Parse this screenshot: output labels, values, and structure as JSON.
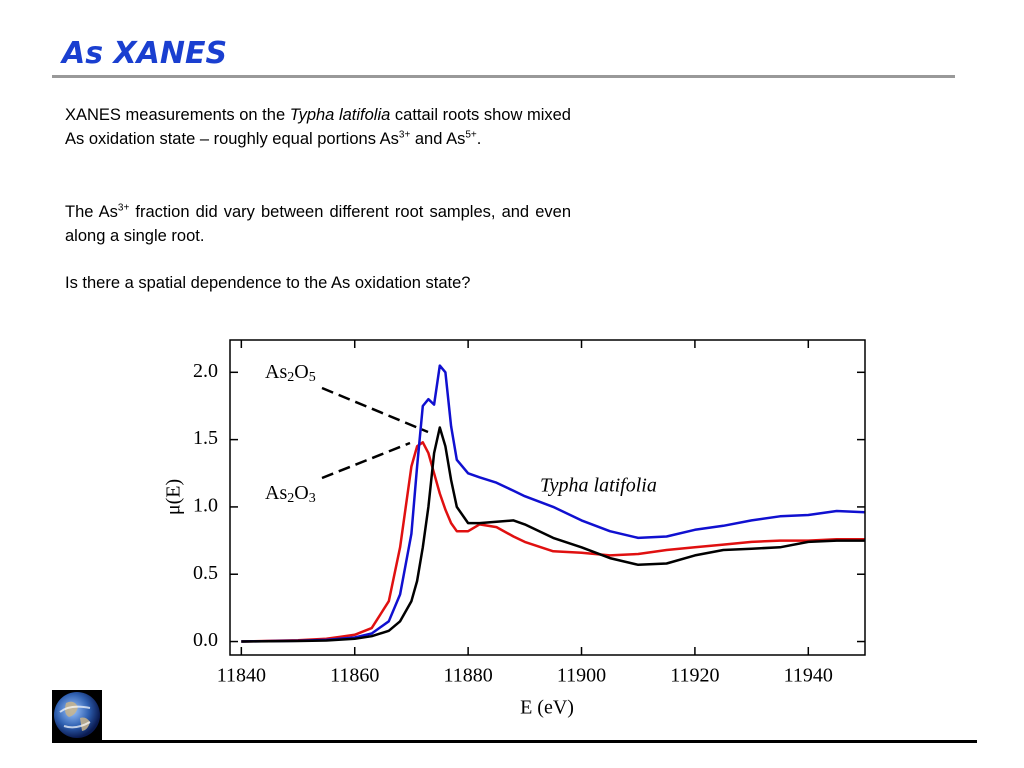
{
  "title": "As XANES",
  "paragraphs": [
    [
      "XANES measurements on the ",
      "Typha latifolia",
      " cattail roots show mixed As oxidation state – roughly equal portions As",
      "3+",
      " and As",
      "5+",
      "."
    ],
    [
      "The As",
      "3+",
      " fraction did vary between different root samples, and even along a single root."
    ],
    [
      "Is there a spatial dependence to the As oxidation state?"
    ]
  ],
  "chart_data": {
    "type": "line",
    "xlabel": "E (eV)",
    "ylabel": "μ(E)",
    "annotations": [
      [
        "As",
        "2",
        "O",
        "5"
      ],
      [
        "As",
        "2",
        "O",
        "3"
      ],
      "Typha latifolia"
    ],
    "x": [
      11840,
      11845,
      11850,
      11855,
      11860,
      11863,
      11866,
      11868,
      11870,
      11871,
      11872,
      11873,
      11874,
      11875,
      11876,
      11877,
      11878,
      11880,
      11882,
      11885,
      11888,
      11890,
      11895,
      11900,
      11905,
      11910,
      11915,
      11920,
      11925,
      11930,
      11935,
      11940,
      11945,
      11950
    ],
    "series": [
      {
        "color": "#e01010",
        "values": [
          0.0,
          0.005,
          0.01,
          0.02,
          0.05,
          0.1,
          0.3,
          0.7,
          1.3,
          1.45,
          1.48,
          1.4,
          1.25,
          1.1,
          0.98,
          0.88,
          0.82,
          0.82,
          0.87,
          0.85,
          0.78,
          0.74,
          0.67,
          0.66,
          0.64,
          0.65,
          0.68,
          0.7,
          0.72,
          0.74,
          0.75,
          0.75,
          0.76,
          0.76
        ]
      },
      {
        "color": "#1010d0",
        "values": [
          0.0,
          0.003,
          0.006,
          0.012,
          0.03,
          0.06,
          0.15,
          0.35,
          0.8,
          1.3,
          1.75,
          1.8,
          1.76,
          2.05,
          2.0,
          1.6,
          1.35,
          1.25,
          1.22,
          1.18,
          1.12,
          1.08,
          1.0,
          0.9,
          0.82,
          0.77,
          0.78,
          0.83,
          0.86,
          0.9,
          0.93,
          0.94,
          0.97,
          0.96
        ]
      },
      {
        "color": "#000000",
        "values": [
          0.0,
          0.002,
          0.004,
          0.008,
          0.02,
          0.04,
          0.08,
          0.15,
          0.3,
          0.45,
          0.7,
          1.0,
          1.4,
          1.59,
          1.45,
          1.2,
          1.0,
          0.88,
          0.88,
          0.89,
          0.9,
          0.87,
          0.77,
          0.7,
          0.62,
          0.57,
          0.58,
          0.64,
          0.68,
          0.69,
          0.7,
          0.74,
          0.75,
          0.75
        ]
      }
    ],
    "xlim": [
      11838,
      11950
    ],
    "ylim": [
      -0.1,
      2.24
    ],
    "xticks": [
      11840,
      11860,
      11880,
      11900,
      11920,
      11940
    ],
    "yticks": [
      {
        "value": 0,
        "label": "0.0"
      },
      0.5,
      {
        "value": 1,
        "label": "1.0"
      },
      1.5,
      {
        "value": 2,
        "label": "2.0"
      }
    ]
  }
}
